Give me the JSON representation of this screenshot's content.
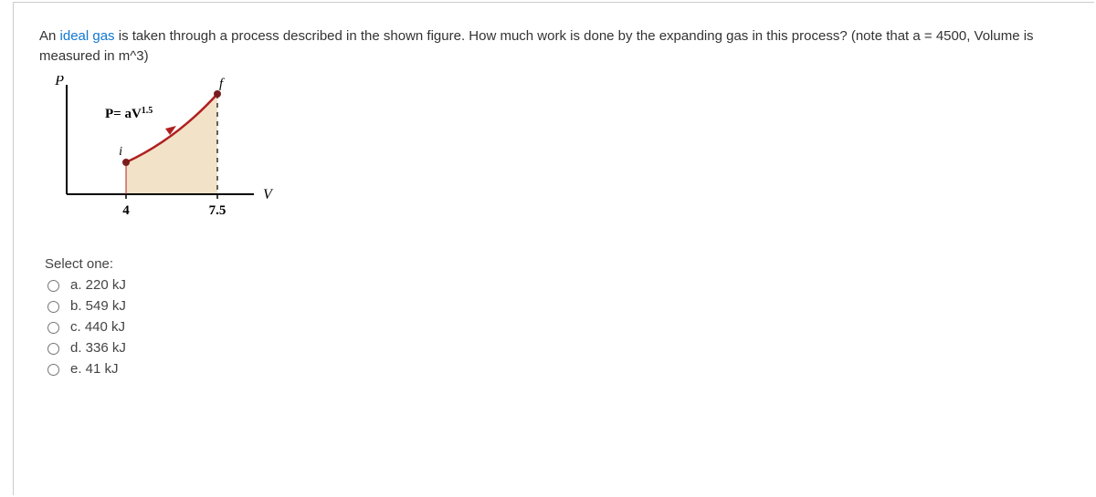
{
  "question": {
    "prefix": "An ",
    "link_text": "ideal gas",
    "rest": " is taken through a process described in the shown figure. How much work is done by the expanding gas in this process? (note that a = 4500, Volume is measured in m^3)"
  },
  "figure": {
    "y_axis_label": "P",
    "x_axis_label": "V",
    "curve_label": "P= aV",
    "curve_label_exp": "1.5",
    "point_i_label": "i",
    "point_f_label": "f",
    "x_tick_1": "4",
    "x_tick_2": "7.5",
    "axis_color": "#000000",
    "curve_color": "#b02020",
    "fill_color": "#f2e2c8",
    "point_fill": "#7a1d1d",
    "dash_color": "#000000"
  },
  "select_label": "Select one:",
  "options": [
    {
      "key": "a",
      "text": "a. 220 kJ"
    },
    {
      "key": "b",
      "text": "b. 549 kJ"
    },
    {
      "key": "c",
      "text": "c. 440 kJ"
    },
    {
      "key": "d",
      "text": "d. 336 kJ"
    },
    {
      "key": "e",
      "text": "e. 41 kJ"
    }
  ]
}
